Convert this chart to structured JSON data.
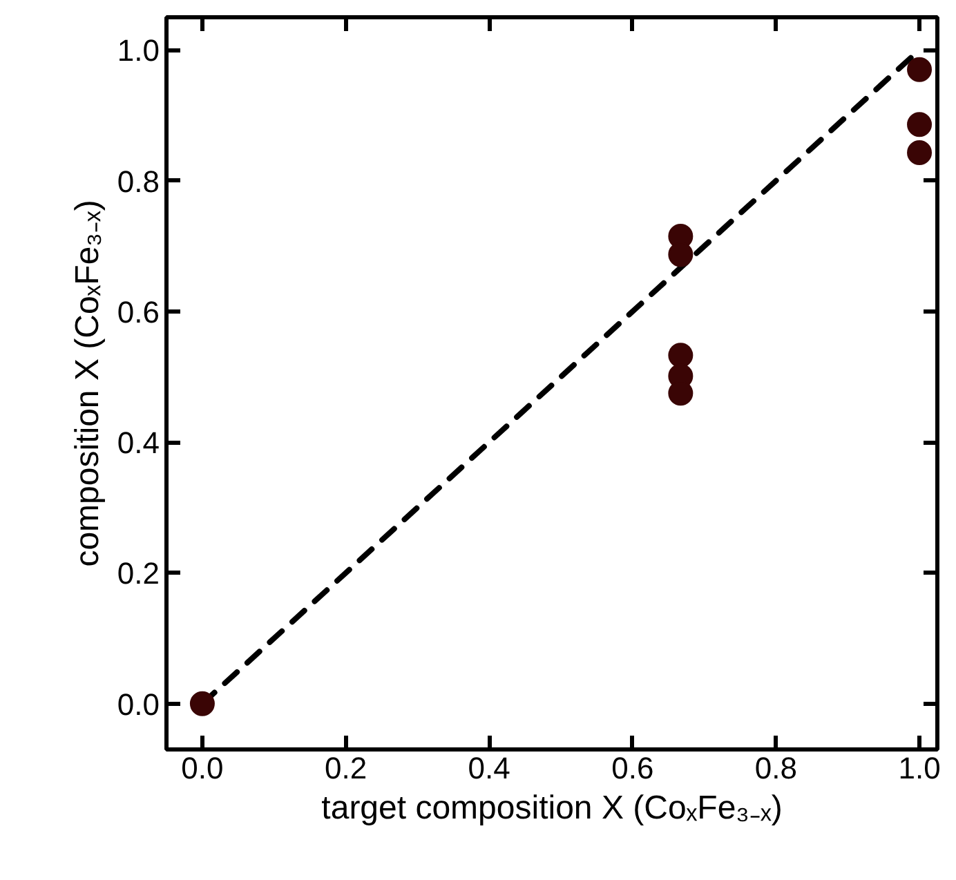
{
  "chart_data": {
    "type": "scatter",
    "xlabel": "target composition X (CoₓFe₃₋ₓ)",
    "ylabel": "composition X (CoₓFe₃₋ₓ)",
    "xlim": [
      -0.05,
      1.025
    ],
    "ylim": [
      -0.07,
      1.05
    ],
    "xticks": [
      {
        "value": 0,
        "label": "0.0"
      },
      {
        "value": 0.2,
        "label": "0.2"
      },
      {
        "value": 0.4,
        "label": "0.4"
      },
      {
        "value": 0.6,
        "label": "0.6"
      },
      {
        "value": 0.8,
        "label": "0.8"
      },
      {
        "value": 1,
        "label": "1.0"
      }
    ],
    "yticks": [
      {
        "value": 0,
        "label": "0.0"
      },
      {
        "value": 0.2,
        "label": "0.2"
      },
      {
        "value": 0.4,
        "label": "0.4"
      },
      {
        "value": 0.6,
        "label": "0.6"
      },
      {
        "value": 0.8,
        "label": "0.8"
      },
      {
        "value": 1,
        "label": "1.0"
      }
    ],
    "grid": false,
    "marker": "circle",
    "series": [
      {
        "type": "line",
        "color": "#000000",
        "line_style": "dashed",
        "marker": "none",
        "x": [
          0,
          1
        ],
        "values": [
          0,
          1
        ]
      },
      {
        "color": "#3a0505",
        "x": [
          0,
          0.667,
          0.667,
          0.667,
          0.667,
          0.667,
          1,
          1,
          1
        ],
        "values": [
          0,
          0.715,
          0.687,
          0.533,
          0.501,
          0.475,
          0.97,
          0.886,
          0.843
        ]
      }
    ]
  }
}
